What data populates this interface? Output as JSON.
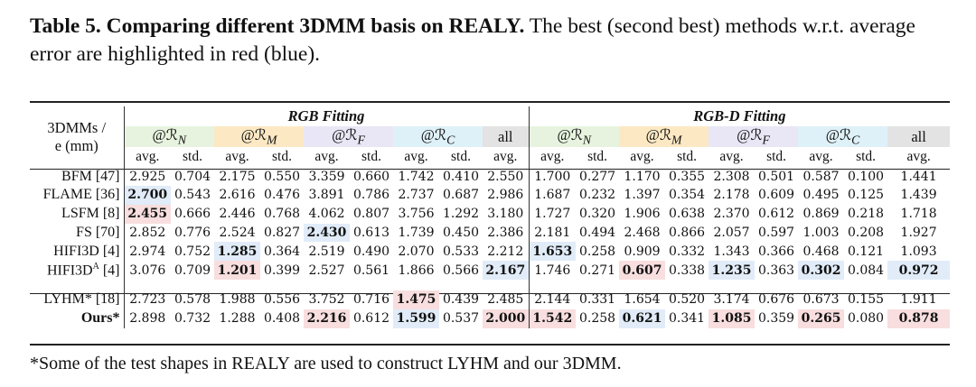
{
  "caption": {
    "label": "Table 5. Comparing different 3DMM basis on REALY.",
    "text": " The best (second best) methods w.r.t. average error are highlighted in red (blue)."
  },
  "header": {
    "corner_line1": "3DMMs /",
    "corner_line2": "e (mm)",
    "group_rgb": "RGB Fitting",
    "group_rgbd": "RGB-D Fitting",
    "regions": [
      "@ℛN",
      "@ℛM",
      "@ℛF",
      "@ℛC",
      "all"
    ],
    "region_prefix": "@ℛ",
    "region_subs": [
      "N",
      "M",
      "F",
      "C"
    ],
    "all": "all",
    "avg": "avg.",
    "std": "std."
  },
  "rows": [
    {
      "name": "BFM [47]",
      "values": [
        "2.925",
        "0.704",
        "2.175",
        "0.550",
        "3.359",
        "0.660",
        "1.742",
        "0.410",
        "2.550",
        "1.700",
        "0.277",
        "1.170",
        "0.355",
        "2.308",
        "0.501",
        "0.587",
        "0.100",
        "1.441"
      ],
      "best": [],
      "second": []
    },
    {
      "name": "FLAME [36]",
      "values": [
        "2.700",
        "0.543",
        "2.616",
        "0.476",
        "3.891",
        "0.786",
        "2.737",
        "0.687",
        "2.986",
        "1.687",
        "0.232",
        "1.397",
        "0.354",
        "2.178",
        "0.609",
        "0.495",
        "0.125",
        "1.439"
      ],
      "best": [],
      "second": [
        0
      ]
    },
    {
      "name": "LSFM [8]",
      "values": [
        "2.455",
        "0.666",
        "2.446",
        "0.768",
        "4.062",
        "0.807",
        "3.756",
        "1.292",
        "3.180",
        "1.727",
        "0.320",
        "1.906",
        "0.638",
        "2.370",
        "0.612",
        "0.869",
        "0.218",
        "1.718"
      ],
      "best": [
        0
      ],
      "second": []
    },
    {
      "name": "FS [70]",
      "values": [
        "2.852",
        "0.776",
        "2.524",
        "0.827",
        "2.430",
        "0.613",
        "1.739",
        "0.450",
        "2.386",
        "2.181",
        "0.494",
        "2.468",
        "0.866",
        "2.057",
        "0.597",
        "1.003",
        "0.208",
        "1.927"
      ],
      "best": [],
      "second": [
        4
      ]
    },
    {
      "name": "HIFI3D [4]",
      "values": [
        "2.974",
        "0.752",
        "1.285",
        "0.364",
        "2.519",
        "0.490",
        "2.070",
        "0.533",
        "2.212",
        "1.653",
        "0.258",
        "0.909",
        "0.332",
        "1.343",
        "0.366",
        "0.468",
        "0.121",
        "1.093"
      ],
      "best": [],
      "second": [
        2,
        9
      ]
    },
    {
      "name": "HIFI3DA [4]",
      "values": [
        "3.076",
        "0.709",
        "1.201",
        "0.399",
        "2.527",
        "0.561",
        "1.866",
        "0.566",
        "2.167",
        "1.746",
        "0.271",
        "0.607",
        "0.338",
        "1.235",
        "0.363",
        "0.302",
        "0.084",
        "0.972"
      ],
      "best": [
        2,
        11
      ],
      "second": [
        8,
        13,
        15,
        17
      ]
    },
    {
      "name": "LYHM* [18]",
      "values": [
        "2.723",
        "0.578",
        "1.988",
        "0.556",
        "3.752",
        "0.716",
        "1.475",
        "0.439",
        "2.485",
        "2.144",
        "0.331",
        "1.654",
        "0.520",
        "3.174",
        "0.676",
        "0.673",
        "0.155",
        "1.911"
      ],
      "best": [
        6
      ],
      "second": []
    },
    {
      "name": "Ours*",
      "values": [
        "2.898",
        "0.732",
        "1.288",
        "0.408",
        "2.216",
        "0.612",
        "1.599",
        "0.537",
        "2.000",
        "1.542",
        "0.258",
        "0.621",
        "0.341",
        "1.085",
        "0.359",
        "0.265",
        "0.080",
        "0.878"
      ],
      "best": [
        4,
        8,
        9,
        13,
        15,
        17
      ],
      "second": [
        6,
        11
      ]
    }
  ],
  "footnote": "*Some of the test shapes in REALY are used to construct LYHM and our 3DMM."
}
